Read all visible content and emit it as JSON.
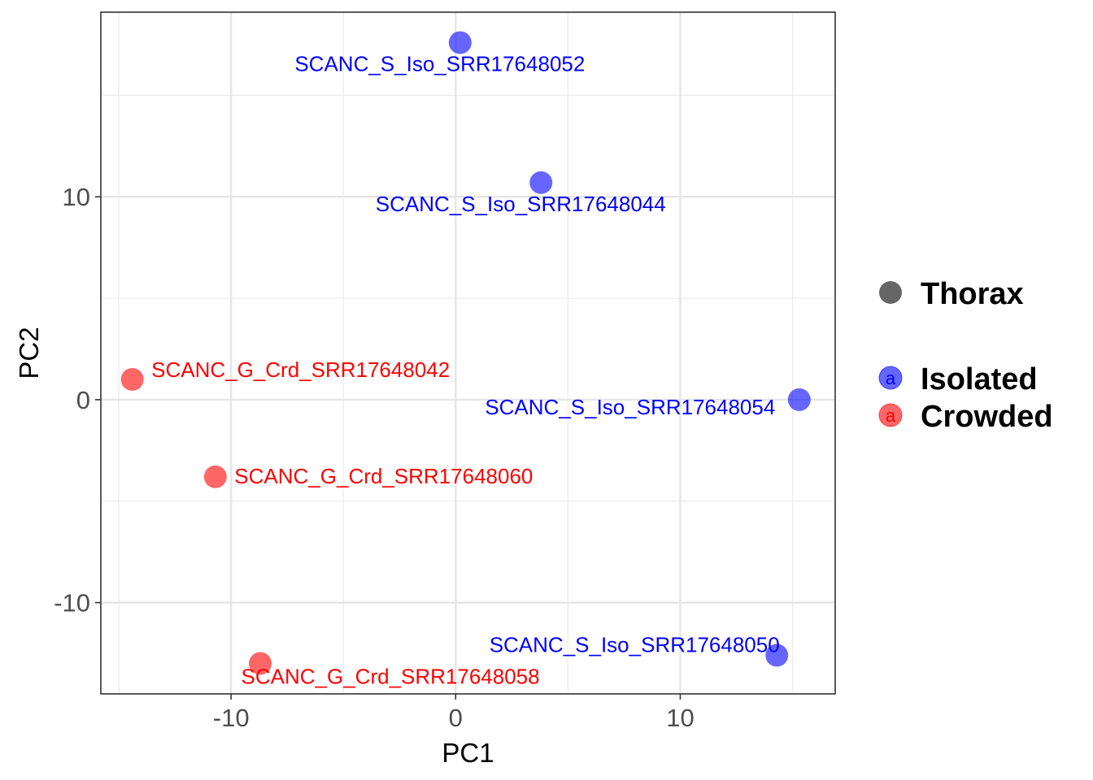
{
  "chart_data": {
    "type": "scatter",
    "title": "",
    "xlabel": "PC1",
    "ylabel": "PC2",
    "xlim": [
      -15.8,
      16.9
    ],
    "ylim": [
      -14.5,
      19.1
    ],
    "x_ticks": [
      -10,
      0,
      10
    ],
    "x_tick_labels": [
      "-10",
      "0",
      "10"
    ],
    "y_ticks": [
      -10,
      0,
      10
    ],
    "y_tick_labels": [
      "-10",
      "0",
      "10"
    ],
    "grid": true,
    "legend_position": "right",
    "shape_legend": {
      "label": "Thorax",
      "color": "#666666"
    },
    "color_legend": [
      {
        "label": "Isolated",
        "color": "#0000FF"
      },
      {
        "label": "Crowded",
        "color": "#FF0000"
      }
    ],
    "legend_key_glyph": "a",
    "series": [
      {
        "name": "Isolated",
        "color": "#0000FF",
        "points": [
          {
            "x": 0.2,
            "y": 17.6,
            "label": "SCANC_S_Iso_SRR17648052"
          },
          {
            "x": 3.8,
            "y": 10.7,
            "label": "SCANC_S_Iso_SRR17648044"
          },
          {
            "x": 15.3,
            "y": 0.0,
            "label": "SCANC_S_Iso_SRR17648054"
          },
          {
            "x": 14.3,
            "y": -12.6,
            "label": "SCANC_S_Iso_SRR17648050"
          }
        ]
      },
      {
        "name": "Crowded",
        "color": "#FF0000",
        "points": [
          {
            "x": -14.4,
            "y": 1.0,
            "label": "SCANC_G_Crd_SRR17648042"
          },
          {
            "x": -10.7,
            "y": -3.8,
            "label": "SCANC_G_Crd_SRR17648060"
          },
          {
            "x": -8.7,
            "y": -13.0,
            "label": "SCANC_G_Crd_SRR17648058"
          }
        ]
      }
    ]
  }
}
